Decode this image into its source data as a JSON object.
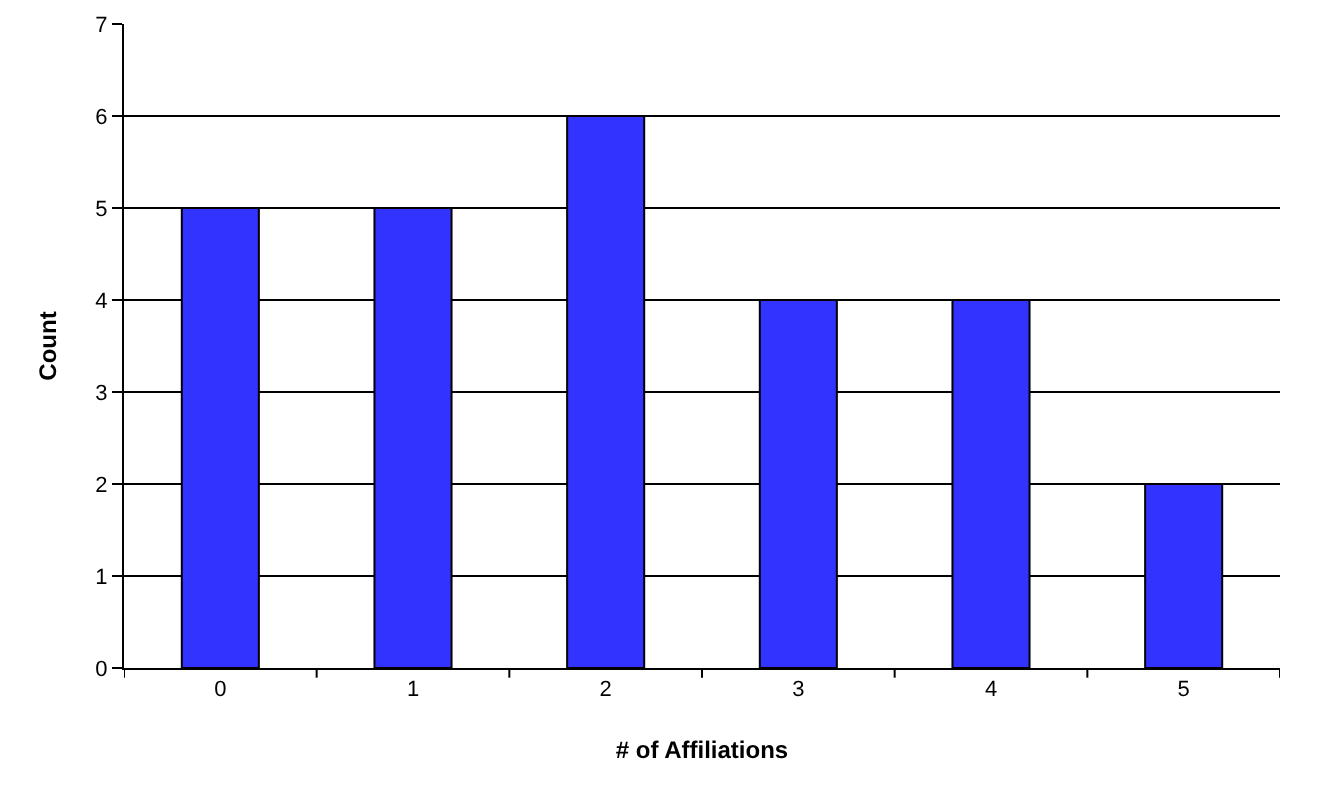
{
  "chart_data": {
    "type": "bar",
    "xlabel": "# of Affiliations",
    "ylabel": "Count",
    "categories": [
      "0",
      "1",
      "2",
      "3",
      "4",
      "5"
    ],
    "values": [
      5,
      5,
      6,
      4,
      4,
      2
    ],
    "color": "#3333ff",
    "ylim": [
      0,
      7
    ],
    "yticks": [
      0,
      1,
      2,
      3,
      4,
      5,
      6,
      7
    ],
    "grid": "y"
  }
}
